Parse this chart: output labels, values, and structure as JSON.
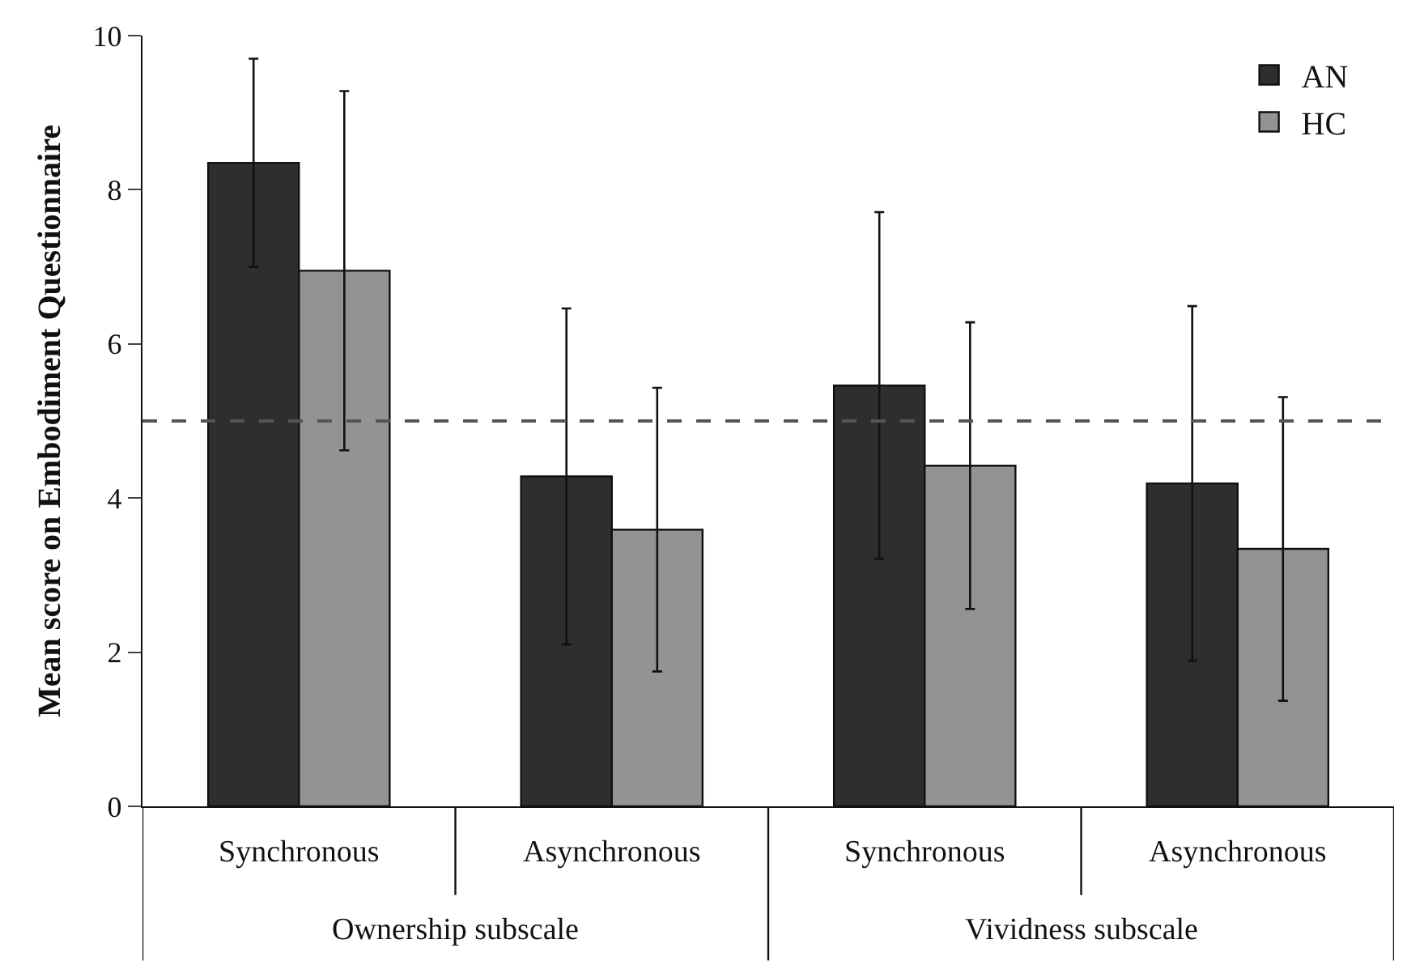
{
  "chart_data": {
    "type": "bar",
    "ylabel": "Mean score on Embodiment Questionnaire",
    "categories": [
      "Synchronous",
      "Asynchronous",
      "Synchronous",
      "Asynchronous"
    ],
    "annotations": [
      "Ownership subscale",
      "Vividness subscale"
    ],
    "series": [
      {
        "name": "AN",
        "color": "#2e2e2e",
        "values": [
          8.35,
          4.28,
          5.46,
          4.19
        ],
        "errors": [
          1.35,
          2.18,
          2.25,
          2.3
        ]
      },
      {
        "name": "HC",
        "color": "#939393",
        "values": [
          6.95,
          3.59,
          4.42,
          3.34
        ],
        "errors": [
          2.33,
          1.84,
          1.86,
          1.97
        ]
      }
    ],
    "ylim": [
      0,
      10
    ],
    "yticks": [
      0,
      2,
      4,
      6,
      8,
      10
    ],
    "ref_lines": [
      {
        "axis": "y",
        "value": 5,
        "color": "#555555",
        "line_style": "dashed"
      }
    ],
    "legend": "top right"
  }
}
